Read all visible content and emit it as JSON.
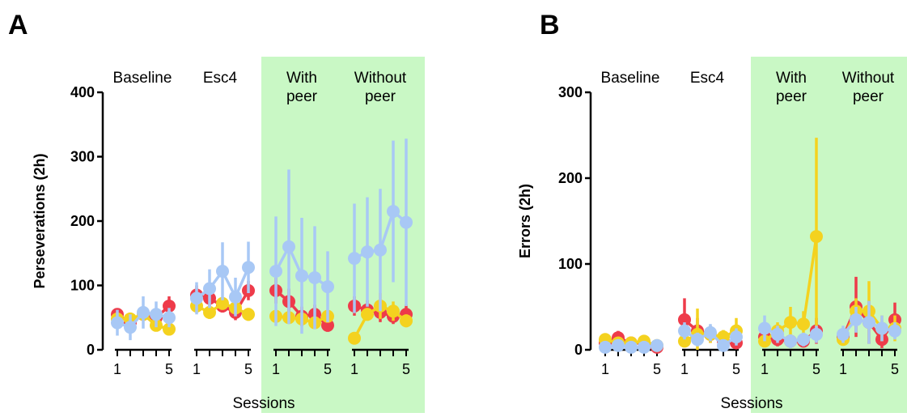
{
  "chart_data": [
    {
      "panel": "A",
      "type": "line",
      "ylabel": "Perseverations (2h)",
      "xlabel": "Sessions",
      "ylim": [
        0,
        400
      ],
      "yticks": [
        "0",
        "100",
        "200",
        "300",
        "400"
      ],
      "phases": [
        {
          "name": "Baseline",
          "highlight": false
        },
        {
          "name": "Esc4",
          "highlight": false
        },
        {
          "name": "With\npeer",
          "highlight": true
        },
        {
          "name": "Without\npeer",
          "highlight": true
        }
      ],
      "highlight_color": "#c9f8c5",
      "xtick_labels": {
        "1": "1",
        "5": "5"
      },
      "sessions": [
        1,
        2,
        3,
        4,
        5
      ],
      "series": [
        {
          "color": "#ee3b4a",
          "values": [
            [
              55,
              42,
              55,
              50,
              68
            ],
            [
              85,
              80,
              68,
              58,
              92
            ],
            [
              92,
              75,
              52,
              55,
              38
            ],
            [
              68,
              62,
              58,
              52,
              55
            ]
          ],
          "err": [
            [
              8,
              8,
              10,
              8,
              15
            ],
            [
              15,
              15,
              10,
              12,
              15
            ],
            [
              20,
              20,
              15,
              15,
              10
            ],
            [
              15,
              15,
              15,
              12,
              15
            ]
          ]
        },
        {
          "color": "#f4d21f",
          "values": [
            [
              48,
              48,
              55,
              38,
              32
            ],
            [
              68,
              58,
              72,
              65,
              55
            ],
            [
              52,
              50,
              48,
              42,
              52
            ],
            [
              18,
              55,
              68,
              60,
              45
            ]
          ],
          "err": [
            [
              8,
              8,
              8,
              8,
              8
            ],
            [
              10,
              10,
              10,
              10,
              10
            ],
            [
              8,
              8,
              8,
              8,
              8
            ],
            [
              5,
              10,
              20,
              15,
              10
            ]
          ]
        },
        {
          "color": "#a8c8f5",
          "values": [
            [
              42,
              35,
              58,
              55,
              50
            ],
            [
              80,
              95,
              122,
              82,
              128
            ],
            [
              122,
              160,
              115,
              112,
              98
            ],
            [
              142,
              152,
              155,
              215,
              198
            ]
          ],
          "err": [
            [
              20,
              20,
              25,
              20,
              15
            ],
            [
              25,
              30,
              45,
              30,
              40
            ],
            [
              85,
              120,
              90,
              80,
              55
            ],
            [
              85,
              85,
              95,
              110,
              130
            ]
          ]
        }
      ]
    },
    {
      "panel": "B",
      "type": "line",
      "ylabel": "Errors (2h)",
      "xlabel": "Sessions",
      "ylim": [
        0,
        300
      ],
      "yticks": [
        "0",
        "100",
        "200",
        "300"
      ],
      "phases": [
        {
          "name": "Baseline",
          "highlight": false
        },
        {
          "name": "Esc4",
          "highlight": false
        },
        {
          "name": "With\npeer",
          "highlight": true
        },
        {
          "name": "Without\npeer",
          "highlight": true
        }
      ],
      "highlight_color": "#c9f8c5",
      "xtick_labels": {
        "1": "1",
        "5": "5"
      },
      "sessions": [
        1,
        2,
        3,
        4,
        5
      ],
      "series": [
        {
          "color": "#ee3b4a",
          "values": [
            [
              8,
              14,
              8,
              8,
              3
            ],
            [
              35,
              22,
              18,
              10,
              8
            ],
            [
              15,
              12,
              10,
              10,
              22
            ],
            [
              15,
              50,
              32,
              12,
              35
            ]
          ],
          "err": [
            [
              5,
              8,
              5,
              5,
              3
            ],
            [
              25,
              15,
              10,
              8,
              5
            ],
            [
              8,
              8,
              5,
              5,
              15
            ],
            [
              8,
              35,
              25,
              10,
              20
            ]
          ]
        },
        {
          "color": "#f4d21f",
          "values": [
            [
              12,
              8,
              8,
              10,
              5
            ],
            [
              10,
              18,
              18,
              15,
              22
            ],
            [
              10,
              22,
              32,
              30,
              132
            ],
            [
              12,
              45,
              45,
              25,
              25
            ]
          ],
          "err": [
            [
              5,
              5,
              5,
              5,
              3
            ],
            [
              5,
              30,
              10,
              8,
              15
            ],
            [
              5,
              10,
              18,
              15,
              115
            ],
            [
              5,
              15,
              35,
              15,
              15
            ]
          ]
        },
        {
          "color": "#a8c8f5",
          "values": [
            [
              3,
              5,
              3,
              3,
              5
            ],
            [
              22,
              12,
              20,
              5,
              15
            ],
            [
              25,
              18,
              10,
              12,
              18
            ],
            [
              18,
              35,
              32,
              25,
              22
            ]
          ],
          "err": [
            [
              3,
              3,
              3,
              3,
              3
            ],
            [
              10,
              8,
              10,
              5,
              10
            ],
            [
              15,
              10,
              8,
              8,
              10
            ],
            [
              10,
              15,
              25,
              15,
              10
            ]
          ]
        }
      ]
    }
  ]
}
